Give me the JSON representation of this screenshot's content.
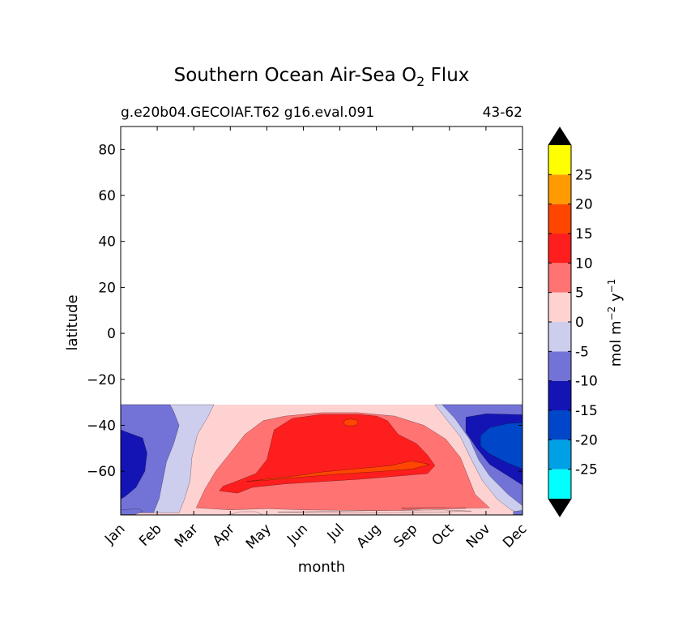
{
  "chart_data": {
    "type": "contour",
    "title": "Southern Ocean Air-Sea O",
    "title_subscript": "2",
    "title_suffix": "Flux",
    "subtitle_left": "g.e20b04.GECOIAF.T62 g16.eval.091",
    "subtitle_right": "43-62",
    "xlabel": "month",
    "ylabel": "latitude",
    "x_categories": [
      "Jan",
      "Feb",
      "Mar",
      "Apr",
      "May",
      "Jun",
      "Jul",
      "Aug",
      "Sep",
      "Oct",
      "Nov",
      "Dec"
    ],
    "ylim": [
      -79,
      90
    ],
    "y_ticks": [
      -60,
      -40,
      -20,
      0,
      20,
      40,
      60,
      80
    ],
    "y_tick_labels": [
      "−60",
      "−40",
      "−20",
      "0",
      "20",
      "40",
      "60",
      "80"
    ],
    "data_lat_max": -31,
    "colorbar": {
      "label_main": "mol m",
      "label_exp1": "−2",
      "label_mid": " y",
      "label_exp2": "−1",
      "levels": [
        -30,
        -25,
        -20,
        -15,
        -10,
        -5,
        0,
        5,
        10,
        15,
        20,
        25,
        30
      ],
      "tick_labels": [
        "-25",
        "-20",
        "-15",
        "-10",
        "-5",
        "0",
        "5",
        "10",
        "15",
        "20",
        "25"
      ],
      "colors": [
        "#00ffff",
        "#00a0e6",
        "#0046c8",
        "#1414b4",
        "#7373d7",
        "#cdcdee",
        "#ffd2d2",
        "#ff7373",
        "#ff1e1e",
        "#ff4600",
        "#ff9b00",
        "#ffff00"
      ],
      "under_color": "#000000",
      "over_color": "#000000"
    },
    "regions": [
      {
        "level": "5 to 10",
        "color": "#ff7373",
        "points": [
          [
            2.07,
            -75.9
          ],
          [
            2.3,
            -68
          ],
          [
            2.6,
            -60
          ],
          [
            3,
            -52
          ],
          [
            3.4,
            -44
          ],
          [
            3.9,
            -38
          ],
          [
            4.5,
            -36
          ],
          [
            5.5,
            -34.5
          ],
          [
            6.5,
            -34.5
          ],
          [
            7.5,
            -36
          ],
          [
            8.3,
            -40
          ],
          [
            8.9,
            -46
          ],
          [
            9.3,
            -54
          ],
          [
            9.5,
            -62
          ],
          [
            9.7,
            -70
          ],
          [
            10.1,
            -75.9
          ],
          [
            8.5,
            -76.2
          ],
          [
            7.5,
            -77.2
          ],
          [
            5,
            -76.8
          ],
          [
            4,
            -76.3
          ],
          [
            3,
            -76.8
          ]
        ]
      },
      {
        "level": "10 to 15",
        "color": "#ff1e1e",
        "points": [
          [
            4.2,
            -42
          ],
          [
            4.7,
            -37
          ],
          [
            5.5,
            -35.3
          ],
          [
            6.5,
            -35.3
          ],
          [
            7,
            -36
          ],
          [
            7.3,
            -38
          ],
          [
            7.6,
            -44
          ],
          [
            8.1,
            -48
          ],
          [
            8.4,
            -53
          ],
          [
            8.6,
            -57.5
          ],
          [
            8.4,
            -61
          ],
          [
            7.5,
            -62.2
          ],
          [
            6.5,
            -63.5
          ],
          [
            5.5,
            -64.5
          ],
          [
            4.5,
            -65.5
          ],
          [
            3.6,
            -67
          ],
          [
            3.2,
            -69.5
          ],
          [
            2.7,
            -68.5
          ],
          [
            2.8,
            -66.5
          ],
          [
            3.1,
            -64.8
          ],
          [
            3.7,
            -61
          ],
          [
            4,
            -55
          ]
        ]
      },
      {
        "level": "15 to 20",
        "color": "#ff4600",
        "points": [
          [
            3.45,
            -64.4
          ],
          [
            4.6,
            -62.5
          ],
          [
            5.4,
            -60.5
          ],
          [
            6.4,
            -59
          ],
          [
            7.4,
            -57.5
          ],
          [
            7.95,
            -55.5
          ],
          [
            8.45,
            -57
          ],
          [
            8,
            -59
          ],
          [
            7,
            -60.2
          ],
          [
            6,
            -61.2
          ],
          [
            5,
            -62.5
          ],
          [
            4,
            -63.9
          ]
        ]
      },
      {
        "level": "15 to 20",
        "color": "#ff4600",
        "points": [
          [
            6.1,
            -38.8
          ],
          [
            6.15,
            -37.6
          ],
          [
            6.3,
            -37.3
          ],
          [
            6.45,
            -37.6
          ],
          [
            6.5,
            -38.8
          ],
          [
            6.45,
            -40
          ],
          [
            6.3,
            -40.3
          ],
          [
            6.15,
            -40
          ]
        ]
      },
      {
        "level": "-5 to 0",
        "color": "#cdcdee",
        "points": [
          [
            0,
            -31
          ],
          [
            2.55,
            -31
          ],
          [
            2.4,
            -36
          ],
          [
            2.1,
            -44
          ],
          [
            1.95,
            -54
          ],
          [
            1.9,
            -64
          ],
          [
            1.75,
            -72
          ],
          [
            1.6,
            -78
          ],
          [
            0,
            -78
          ]
        ]
      },
      {
        "level": "-5 to 0",
        "color": "#cdcdee",
        "points": [
          [
            8.6,
            -31
          ],
          [
            11,
            -31
          ],
          [
            11,
            -78.4
          ],
          [
            10.7,
            -77
          ],
          [
            10.3,
            -72
          ],
          [
            9.9,
            -64
          ],
          [
            9.6,
            -55
          ],
          [
            9.3,
            -45
          ],
          [
            8.9,
            -37
          ]
        ]
      },
      {
        "level": "-10 to -5",
        "color": "#7373d7",
        "points": [
          [
            0,
            -31
          ],
          [
            1.35,
            -31
          ],
          [
            1.45,
            -34
          ],
          [
            1.6,
            -40
          ],
          [
            1.45,
            -48
          ],
          [
            1.25,
            -56
          ],
          [
            1.15,
            -64
          ],
          [
            1.05,
            -72
          ],
          [
            0.9,
            -78
          ],
          [
            0,
            -78
          ]
        ]
      },
      {
        "level": "-10 to -5",
        "color": "#7373d7",
        "points": [
          [
            8.8,
            -31
          ],
          [
            11,
            -31
          ],
          [
            11,
            -75
          ],
          [
            10.6,
            -70
          ],
          [
            10.1,
            -62
          ],
          [
            9.8,
            -55
          ],
          [
            9.55,
            -46
          ],
          [
            9.15,
            -37
          ]
        ]
      },
      {
        "level": "-15 to -10",
        "color": "#1414b4",
        "points": [
          [
            0,
            -42
          ],
          [
            0.25,
            -43.5
          ],
          [
            0.6,
            -45.5
          ],
          [
            0.72,
            -52
          ],
          [
            0.66,
            -60
          ],
          [
            0.42,
            -67
          ],
          [
            0.12,
            -71
          ],
          [
            0,
            -72
          ]
        ]
      },
      {
        "level": "-15 to -10",
        "color": "#1414b4",
        "points": [
          [
            9.45,
            -36.5
          ],
          [
            10,
            -35
          ],
          [
            11,
            -35.4
          ],
          [
            11,
            -66
          ],
          [
            10.6,
            -62
          ],
          [
            10.1,
            -57
          ],
          [
            9.75,
            -50
          ],
          [
            9.45,
            -43
          ]
        ]
      },
      {
        "level": "-20 to -15",
        "color": "#0046c8",
        "points": [
          [
            9.85,
            -44.5
          ],
          [
            10.1,
            -41
          ],
          [
            10.6,
            -39.2
          ],
          [
            11,
            -38.8
          ],
          [
            11,
            -59
          ],
          [
            10.6,
            -56.5
          ],
          [
            10.1,
            -52.5
          ],
          [
            9.85,
            -49
          ]
        ]
      },
      {
        "level": "-10 to -5",
        "color": "#7373d7",
        "points": [
          [
            0,
            -76.8
          ],
          [
            0.5,
            -76.3
          ],
          [
            0.6,
            -77.4
          ],
          [
            0.4,
            -78.8
          ],
          [
            0,
            -78.8
          ]
        ]
      },
      {
        "level": "-10 to -5",
        "color": "#7373d7",
        "points": [
          [
            10.75,
            -77.6
          ],
          [
            11,
            -77
          ],
          [
            11,
            -78.8
          ],
          [
            10.75,
            -78.8
          ]
        ]
      },
      {
        "level": "0 to 5",
        "color": "#ffd2d2",
        "points": [
          [
            2.9,
            -79
          ],
          [
            3.3,
            -77.6
          ],
          [
            3.7,
            -77.6
          ],
          [
            3.9,
            -79
          ]
        ]
      },
      {
        "level": "0 to 5",
        "color": "#ffd2d2",
        "points": [
          [
            4.3,
            -77.8
          ],
          [
            6.7,
            -77.2
          ],
          [
            8.8,
            -76.8
          ],
          [
            9.6,
            -77.3
          ],
          [
            8.6,
            -77.8
          ],
          [
            6.5,
            -78.1
          ]
        ]
      },
      {
        "level": "5 to 10",
        "color": "#ff7373",
        "points": [
          [
            7.7,
            -75.9
          ],
          [
            8.7,
            -75.7
          ],
          [
            9.45,
            -76.1
          ],
          [
            8.7,
            -76.5
          ],
          [
            7.7,
            -76.4
          ]
        ]
      }
    ]
  }
}
